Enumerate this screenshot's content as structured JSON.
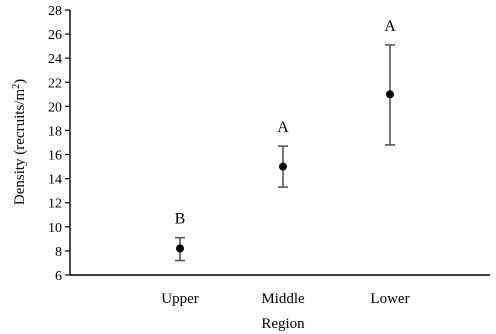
{
  "chart_data": {
    "type": "scatter",
    "title": "",
    "xlabel": "Region",
    "ylabel_main": "Density (recruits/m",
    "ylabel_sup": "2",
    "ylabel_close": ")",
    "ylim": [
      6,
      28
    ],
    "yticks": [
      6,
      8,
      10,
      12,
      14,
      16,
      18,
      20,
      22,
      24,
      26,
      28
    ],
    "categories": [
      "Upper",
      "Middle",
      "Lower"
    ],
    "values": [
      8.2,
      15.0,
      21.0
    ],
    "error_low": [
      7.2,
      13.3,
      16.8
    ],
    "error_high": [
      9.1,
      16.7,
      25.1
    ],
    "significance_labels": [
      "B",
      "A",
      "A"
    ],
    "grid": false,
    "legend": "none",
    "colors": {
      "axis": "#000000",
      "marker": "#000000",
      "error_bar": "#555555"
    }
  }
}
